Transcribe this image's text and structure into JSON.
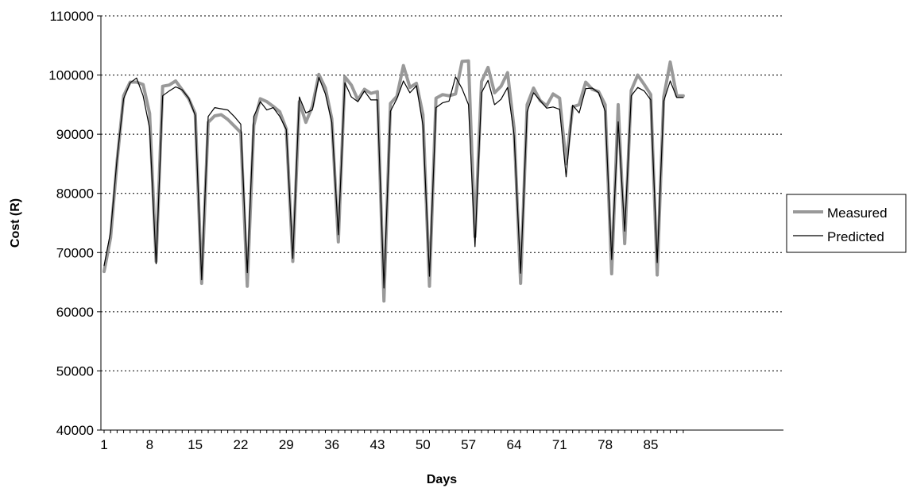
{
  "chart_data": {
    "type": "line",
    "title": "",
    "xlabel": "Days",
    "ylabel": "Cost (R)",
    "xlim": [
      1,
      90
    ],
    "ylim": [
      40000,
      110000
    ],
    "x_ticks": [
      1,
      8,
      15,
      22,
      29,
      36,
      43,
      50,
      57,
      64,
      71,
      78,
      85
    ],
    "y_ticks": [
      40000,
      50000,
      60000,
      70000,
      80000,
      90000,
      100000,
      110000
    ],
    "grid": {
      "horizontal": true,
      "style": "dotted"
    },
    "legend_position": "right",
    "series": [
      {
        "name": "Measured",
        "color": "#999999",
        "x": [
          1,
          2,
          3,
          4,
          5,
          6,
          7,
          8,
          9,
          10,
          11,
          12,
          13,
          14,
          15,
          16,
          17,
          18,
          19,
          20,
          21,
          22,
          23,
          24,
          25,
          26,
          27,
          28,
          29,
          30,
          31,
          32,
          33,
          34,
          35,
          36,
          37,
          38,
          39,
          40,
          41,
          42,
          43,
          44,
          45,
          46,
          47,
          48,
          49,
          50,
          51,
          52,
          53,
          54,
          55,
          56,
          57,
          58,
          59,
          60,
          61,
          62,
          63,
          64,
          65,
          66,
          67,
          68,
          69,
          70,
          71,
          72,
          73,
          74,
          75,
          76,
          77,
          78,
          79,
          80,
          81,
          82,
          83,
          84,
          85,
          86,
          87,
          88,
          89,
          90
        ],
        "values": [
          66800,
          72500,
          85500,
          96500,
          98800,
          98800,
          98400,
          93500,
          68500,
          98100,
          98300,
          99000,
          97500,
          96000,
          93500,
          64800,
          92000,
          93100,
          93300,
          92500,
          91400,
          90300,
          64300,
          91500,
          96000,
          95500,
          94700,
          93800,
          90900,
          68500,
          95500,
          92000,
          94700,
          100100,
          97800,
          92600,
          71800,
          99700,
          98300,
          95800,
          97600,
          96900,
          97200,
          61800,
          95200,
          96400,
          101600,
          97900,
          98600,
          93300,
          64300,
          96100,
          96700,
          96500,
          96800,
          102300,
          102400,
          72700,
          98900,
          101300,
          97000,
          98100,
          100400,
          91000,
          64800,
          95000,
          97800,
          95700,
          94800,
          96800,
          96100,
          85000,
          94600,
          95000,
          98800,
          97600,
          97200,
          95000,
          66400,
          95000,
          71500,
          97400,
          100000,
          98400,
          96700,
          66200,
          96300,
          102200,
          96500,
          96500
        ]
      },
      {
        "name": "Predicted",
        "color": "#000000",
        "x": [
          1,
          2,
          3,
          4,
          5,
          6,
          7,
          8,
          9,
          10,
          11,
          12,
          13,
          14,
          15,
          16,
          17,
          18,
          19,
          20,
          21,
          22,
          23,
          24,
          25,
          26,
          27,
          28,
          29,
          30,
          31,
          32,
          33,
          34,
          35,
          36,
          37,
          38,
          39,
          40,
          41,
          42,
          43,
          44,
          45,
          46,
          47,
          48,
          49,
          50,
          51,
          52,
          53,
          54,
          55,
          56,
          57,
          58,
          59,
          60,
          61,
          62,
          63,
          64,
          65,
          66,
          67,
          68,
          69,
          70,
          71,
          72,
          73,
          74,
          75,
          76,
          77,
          78,
          79,
          80,
          81,
          82,
          83,
          84,
          85,
          86,
          87,
          88,
          89,
          90
        ],
        "values": [
          67800,
          73500,
          86000,
          96000,
          98700,
          99500,
          96500,
          91000,
          68100,
          96500,
          97300,
          98000,
          97500,
          96100,
          93200,
          65400,
          93000,
          94500,
          94300,
          94100,
          93000,
          91700,
          66600,
          93000,
          95500,
          94100,
          94500,
          93000,
          90800,
          69000,
          96300,
          93600,
          94100,
          99600,
          96800,
          92000,
          73000,
          98700,
          96300,
          95500,
          97300,
          95800,
          95800,
          64000,
          93900,
          96000,
          99000,
          97000,
          98200,
          91500,
          66000,
          94500,
          95300,
          95600,
          99700,
          97700,
          95000,
          71000,
          97000,
          99100,
          95000,
          95900,
          97900,
          89900,
          66500,
          93800,
          97000,
          95700,
          94400,
          94600,
          94200,
          82800,
          94900,
          93600,
          97700,
          97800,
          97000,
          93900,
          68800,
          92100,
          73600,
          96500,
          97900,
          97300,
          95800,
          68300,
          95600,
          99000,
          96200,
          96200
        ]
      }
    ]
  }
}
